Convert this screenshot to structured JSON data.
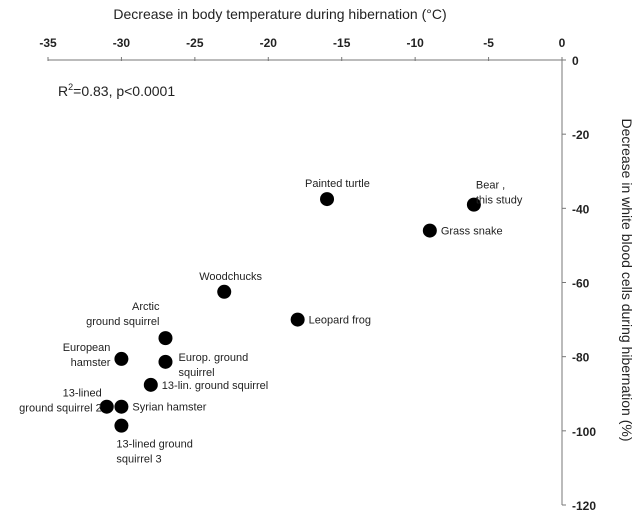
{
  "chart_data": {
    "type": "scatter",
    "xlabel": "Decrease in body temperature during hibernation (°C)",
    "ylabel": "Decrease in white blood cells during hibernation (%)",
    "annotation": {
      "r2_text": "R",
      "r2_sup": "2",
      "rest": "=0.83, p<0.0001"
    },
    "xlim": [
      -35,
      0
    ],
    "ylim": [
      -120,
      0
    ],
    "xticks": [
      -35,
      -30,
      -25,
      -20,
      -15,
      -10,
      -5,
      0
    ],
    "yticks": [
      0,
      -20,
      -40,
      -60,
      -80,
      -100,
      -120
    ],
    "grid": false,
    "points": [
      {
        "label": [
          "Painted turtle"
        ],
        "x": -16,
        "y": -37.5,
        "pos": "above"
      },
      {
        "label": [
          "Bear ,",
          "this study"
        ],
        "x": -6,
        "y": -39,
        "pos": "aboveright"
      },
      {
        "label": [
          "Grass snake"
        ],
        "x": -9,
        "y": -46,
        "pos": "right"
      },
      {
        "label": [
          "Woodchucks"
        ],
        "x": -23,
        "y": -62.5,
        "pos": "above"
      },
      {
        "label": [
          "Leopard frog"
        ],
        "x": -18,
        "y": -70,
        "pos": "right"
      },
      {
        "label": [
          "Arctic",
          "ground squirrel"
        ],
        "x": -27,
        "y": -75,
        "pos": "aboveleft"
      },
      {
        "label": [
          "European",
          "hamster"
        ],
        "x": -30,
        "y": -80.6,
        "pos": "left"
      },
      {
        "label": [
          "Europ. ground",
          "squirrel"
        ],
        "x": -27,
        "y": -81.4,
        "pos": "right2"
      },
      {
        "label": [
          "13-lin. ground squirrel"
        ],
        "x": -28,
        "y": -87.6,
        "pos": "right"
      },
      {
        "label": [
          "13-lined",
          "ground squirrel 2"
        ],
        "x": -31,
        "y": -93.5,
        "pos": "left"
      },
      {
        "label": [
          "Syrian hamster"
        ],
        "x": -30,
        "y": -93.5,
        "pos": "right"
      },
      {
        "label": [
          "13-lined ground",
          "squirrel 3"
        ],
        "x": -30,
        "y": -98.6,
        "pos": "below"
      }
    ]
  }
}
